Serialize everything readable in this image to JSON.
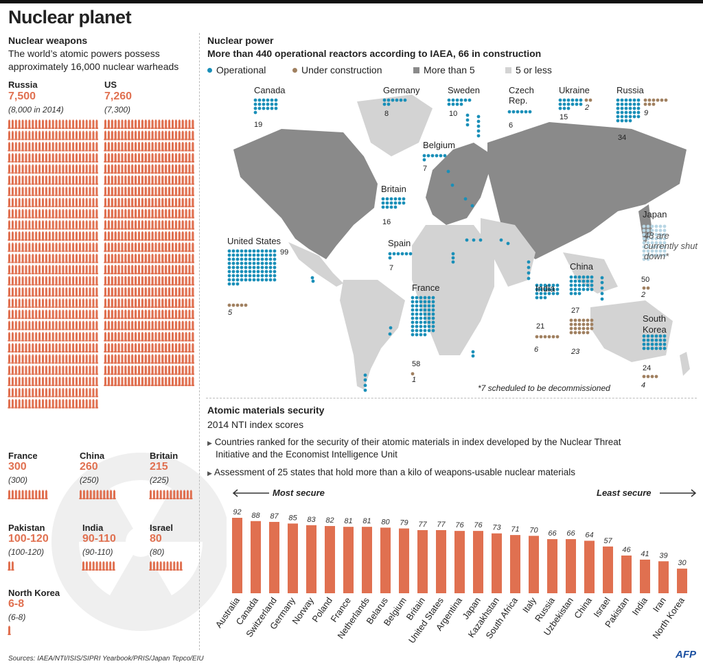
{
  "title": "Nuclear planet",
  "weapons": {
    "heading": "Nuclear weapons",
    "subtitle_line1": "The world’s atomic powers possess",
    "subtitle_line2": "approximately 16,000 nuclear warheads",
    "countries": [
      {
        "name": "Russia",
        "value": "7,500",
        "previous": "(8,000 in 2014)"
      },
      {
        "name": "US",
        "value": "7,260",
        "previous": "(7,300)"
      },
      {
        "name": "France",
        "value": "300",
        "previous": "(300)"
      },
      {
        "name": "China",
        "value": "260",
        "previous": "(250)"
      },
      {
        "name": "Britain",
        "value": "215",
        "previous": "(225)"
      },
      {
        "name": "Pakistan",
        "value": "100-120",
        "previous": "(100-120)"
      },
      {
        "name": "India",
        "value": "90-110",
        "previous": "(90-110)"
      },
      {
        "name": "Israel",
        "value": "80",
        "previous": "(80)"
      },
      {
        "name": "North Korea",
        "value": "6-8",
        "previous": "(6-8)"
      }
    ]
  },
  "power": {
    "heading": "Nuclear power",
    "subtitle": "More than 440 operational reactors according to IAEA, 66 in construction",
    "legend": {
      "operational": "Operational",
      "construction": "Under construction",
      "more5": "More than 5",
      "less5": "5 or less"
    },
    "colors": {
      "operational": "#1a8fb8",
      "construction": "#a08060",
      "more5": "#8a8a8a",
      "less5": "#d3d3d3"
    },
    "countries": [
      {
        "name": "Canada",
        "operational": "19"
      },
      {
        "name": "Germany",
        "operational": "8"
      },
      {
        "name": "Sweden",
        "operational": "10"
      },
      {
        "name": "Czech Rep.",
        "operational": "6"
      },
      {
        "name": "Ukraine",
        "operational": "15",
        "construction": "2"
      },
      {
        "name": "Russia",
        "operational": "34",
        "construction": "9"
      },
      {
        "name": "Belgium",
        "operational": "7"
      },
      {
        "name": "Britain",
        "operational": "16"
      },
      {
        "name": "Japan",
        "operational": "50",
        "construction": "2",
        "note": "48 are currently shut down*"
      },
      {
        "name": "United States",
        "operational": "99",
        "construction": "5"
      },
      {
        "name": "Spain",
        "operational": "7"
      },
      {
        "name": "France",
        "operational": "58",
        "construction": "1"
      },
      {
        "name": "India",
        "operational": "21",
        "construction": "6"
      },
      {
        "name": "China",
        "operational": "27",
        "construction": "23"
      },
      {
        "name": "South Korea",
        "operational": "24",
        "construction": "4"
      }
    ],
    "footnote": "*7 scheduled to be decommissioned"
  },
  "security": {
    "heading": "Atomic materials security",
    "subtitle": "2014 NTI index scores",
    "bullet1_line1": "Countries ranked for the security of their atomic materials in index developed by the Nuclear Threat",
    "bullet1_line2": "Initiative and the Economist Intelligence Unit",
    "bullet2": "Assessment of 25 states that hold more than a kilo of weapons-usable nuclear materials",
    "most_secure": "Most secure",
    "least_secure": "Least secure"
  },
  "chart_data": {
    "type": "bar",
    "title": "2014 NTI index scores",
    "categories": [
      "Australia",
      "Canada",
      "Switzerland",
      "Germany",
      "Norway",
      "Poland",
      "France",
      "Netherlands",
      "Belarus",
      "Belgium",
      "Britain",
      "United States",
      "Argentina",
      "Japan",
      "Kazakhstan",
      "South Africa",
      "Italy",
      "Russia",
      "Uzbekistan",
      "China",
      "Israel",
      "Pakistan",
      "India",
      "Iran",
      "North Korea"
    ],
    "values": [
      92,
      88,
      87,
      85,
      83,
      82,
      81,
      81,
      80,
      79,
      77,
      77,
      76,
      76,
      73,
      71,
      70,
      66,
      66,
      64,
      57,
      46,
      41,
      39,
      30
    ],
    "xlabel": "",
    "ylabel": "",
    "ylim": [
      0,
      100
    ],
    "color": "#e07050"
  },
  "sources": "Sources: IAEA/NTI/ISIS/SIPRI Yearbook/PRIS/Japan Tepco/EIU",
  "logo": "AFP"
}
